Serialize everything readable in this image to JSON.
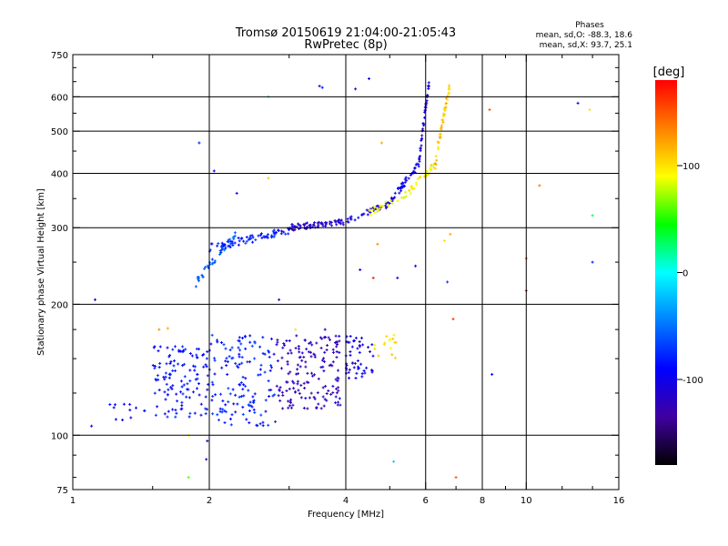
{
  "chart_data": {
    "type": "scatter",
    "title": "Tromsø 20150619 21:04:00-21:05:43",
    "subtitle": "RwPretec (8p)",
    "xlabel": "Frequency [MHz]",
    "ylabel": "Stationary phase Virtual Height [km]",
    "x_scale": "log",
    "y_scale": "log",
    "xlim": [
      1,
      16
    ],
    "ylim": [
      75,
      750
    ],
    "x_ticks": [
      1,
      2,
      4,
      6,
      8,
      10,
      16
    ],
    "x_tick_labels": [
      "1",
      "2",
      "4",
      "6",
      "8",
      "10",
      "16"
    ],
    "y_ticks": [
      75,
      100,
      200,
      300,
      400,
      500,
      600,
      750
    ],
    "y_tick_labels": [
      "75",
      "100",
      "200",
      "300",
      "400",
      "500",
      "600",
      "750"
    ],
    "grid": true,
    "stats": {
      "heading": "Phases",
      "line_o": "mean, sd,O: -88.3, 18.6",
      "line_x": "mean, sd,X:  93.7, 25.1"
    },
    "colorbar": {
      "label": "[deg]",
      "range": [
        -180,
        180
      ],
      "ticks": [
        100,
        0,
        -100
      ],
      "tick_labels": [
        "100",
        "0",
        "-100"
      ],
      "colors": [
        "#ff0000",
        "#ff8000",
        "#ffff00",
        "#00ff00",
        "#00ffff",
        "#0080ff",
        "#0000ff",
        "#4000a0",
        "#000000"
      ]
    },
    "segments": [
      {
        "name": "",
        "x0": 1.85,
        "x1": 2.3,
        "y0": 220,
        "y1": 290,
        "n": 40,
        "spread": 10,
        "c": -60
      },
      {
        "name": "",
        "x0": 2.0,
        "x1": 3.0,
        "y0": 270,
        "y1": 295,
        "n": 70,
        "spread": 12,
        "c": -80
      },
      {
        "name": "",
        "x0": 3.0,
        "x1": 4.0,
        "y0": 300,
        "y1": 310,
        "n": 70,
        "spread": 10,
        "c": -115
      },
      {
        "name": "",
        "x0": 4.0,
        "x1": 5.0,
        "y0": 310,
        "y1": 340,
        "n": 40,
        "spread": 10,
        "c": -100
      },
      {
        "name": "",
        "x0": 5.0,
        "x1": 5.8,
        "y0": 340,
        "y1": 420,
        "n": 40,
        "spread": 15,
        "c": -100
      },
      {
        "name": "",
        "x0": 5.8,
        "x1": 6.1,
        "y0": 420,
        "y1": 640,
        "n": 40,
        "spread": 20,
        "c": -110
      },
      {
        "name": "",
        "x0": 4.4,
        "x1": 5.5,
        "y0": 320,
        "y1": 360,
        "n": 25,
        "spread": 10,
        "c": 90
      },
      {
        "name": "",
        "x0": 5.5,
        "x1": 6.3,
        "y0": 360,
        "y1": 420,
        "n": 30,
        "spread": 15,
        "c": 95
      },
      {
        "name": "",
        "x0": 6.3,
        "x1": 6.8,
        "y0": 420,
        "y1": 640,
        "n": 50,
        "spread": 25,
        "c": 110
      },
      {
        "name": "",
        "x0": 1.5,
        "x1": 2.0,
        "y0": 110,
        "y1": 160,
        "n": 120,
        "spread": 0,
        "c": -85
      },
      {
        "name": "",
        "x0": 2.0,
        "x1": 2.8,
        "y0": 105,
        "y1": 170,
        "n": 140,
        "spread": 0,
        "c": -80
      },
      {
        "name": "",
        "x0": 2.8,
        "x1": 3.9,
        "y0": 115,
        "y1": 170,
        "n": 160,
        "spread": 0,
        "c": -120
      },
      {
        "name": "",
        "x0": 4.0,
        "x1": 4.6,
        "y0": 135,
        "y1": 170,
        "n": 50,
        "spread": 0,
        "c": -105
      },
      {
        "name": "",
        "x0": 4.6,
        "x1": 5.2,
        "y0": 150,
        "y1": 170,
        "n": 15,
        "spread": 0,
        "c": 100
      },
      {
        "name": "",
        "x0": 1.2,
        "x1": 1.5,
        "y0": 108,
        "y1": 118,
        "n": 12,
        "spread": 0,
        "c": -95
      }
    ],
    "scatter_points": [
      [
        1.12,
        205,
        -100
      ],
      [
        1.1,
        105,
        -90
      ],
      [
        1.9,
        470,
        -80
      ],
      [
        1.98,
        97,
        -110
      ],
      [
        2.05,
        405,
        -95
      ],
      [
        2.3,
        360,
        -100
      ],
      [
        3.5,
        635,
        -100
      ],
      [
        3.55,
        630,
        -85
      ],
      [
        4.2,
        625,
        -110
      ],
      [
        4.5,
        660,
        -100
      ],
      [
        2.7,
        600,
        10
      ],
      [
        2.7,
        390,
        110
      ],
      [
        4.8,
        470,
        120
      ],
      [
        8.3,
        560,
        150
      ],
      [
        10.0,
        600,
        175
      ],
      [
        10.0,
        255,
        160
      ],
      [
        10.0,
        215,
        175
      ],
      [
        10.7,
        375,
        140
      ],
      [
        13.0,
        580,
        -110
      ],
      [
        13.8,
        560,
        100
      ],
      [
        14.0,
        320,
        30
      ],
      [
        14.0,
        250,
        -80
      ],
      [
        7.0,
        80,
        150
      ],
      [
        6.8,
        290,
        120
      ],
      [
        6.9,
        185,
        160
      ],
      [
        6.6,
        280,
        100
      ],
      [
        6.7,
        225,
        -70
      ],
      [
        4.7,
        275,
        130
      ],
      [
        4.3,
        240,
        -100
      ],
      [
        5.2,
        230,
        -100
      ],
      [
        4.6,
        230,
        170
      ],
      [
        5.1,
        87,
        -20
      ],
      [
        8.4,
        138,
        -90
      ],
      [
        5.7,
        245,
        -100
      ],
      [
        2.85,
        205,
        -120
      ],
      [
        1.8,
        80,
        60
      ],
      [
        1.55,
        175,
        130
      ],
      [
        1.8,
        100,
        90
      ],
      [
        3.1,
        175,
        100
      ],
      [
        3.6,
        175,
        -100
      ],
      [
        1.62,
        176,
        120
      ],
      [
        1.97,
        88,
        -120
      ]
    ]
  }
}
